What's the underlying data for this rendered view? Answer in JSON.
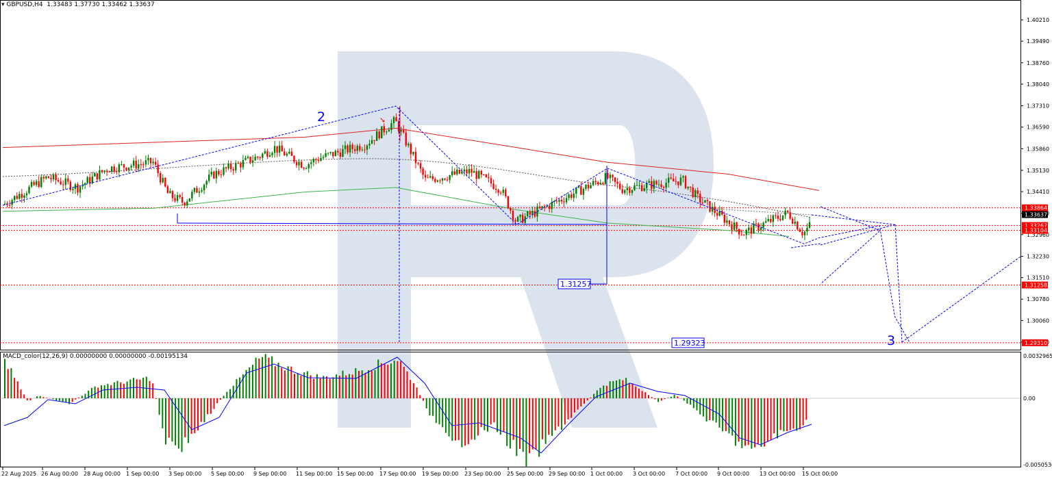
{
  "window": {
    "symbol_title": "GBPUSD,H4  1.33483 1.37730 1.33462 1.33637",
    "macd_title": "MACD_color(12,26,9) 0.00000000 0.00000000 -0.00195134"
  },
  "colors": {
    "bull": "#008000",
    "bear": "#ff0000",
    "wave": "#0000ff",
    "ma_red": "#e02020",
    "ma_green": "#3cb44b",
    "watermark": "#d6e0ec",
    "level_line": "#ff0000"
  },
  "price_axis": {
    "ticks": [
      "1.40210",
      "1.39490",
      "1.38760",
      "1.38040",
      "1.37310",
      "1.36590",
      "1.35860",
      "1.35130",
      "1.34410",
      "1.33680",
      "1.32960",
      "1.32230",
      "1.31510",
      "1.30780",
      "1.30060",
      "1.29330"
    ],
    "current_price": "1.33637"
  },
  "levels": [
    {
      "label": "1.33864",
      "value": 1.33864
    },
    {
      "label": "1.33267",
      "value": 1.33267
    },
    {
      "label": "1.33104",
      "value": 1.33104
    },
    {
      "label": "1.31258",
      "value": 1.31258
    },
    {
      "label": "1.29310",
      "value": 1.2931
    }
  ],
  "annotations": {
    "wave_2": "2",
    "wave_3": "3",
    "target_1": "1.31257",
    "target_2": "1.29323"
  },
  "macd_axis": {
    "top": "0.0032965",
    "zero": "0.00",
    "bottom": "-0.0050536"
  },
  "time_axis": [
    "22 Aug 2025",
    "26 Aug 00:00",
    "28 Aug 00:00",
    "1 Sep 00:00",
    "3 Sep 00:00",
    "5 Sep 00:00",
    "9 Sep 00:00",
    "11 Sep 00:00",
    "15 Sep 00:00",
    "17 Sep 00:00",
    "19 Sep 00:00",
    "23 Sep 00:00",
    "25 Sep 00:00",
    "29 Sep 00:00",
    "1 Oct 00:00",
    "3 Oct 00:00",
    "7 Oct 00:00",
    "9 Oct 00:00",
    "13 Oct 00:00",
    "15 Oct 00:00"
  ],
  "chart_data": {
    "type": "candlestick",
    "symbol": "GBPUSD",
    "timeframe": "H4",
    "ohlc_header": {
      "open": 1.33483,
      "high": 1.3773,
      "low": 1.33462,
      "close": 1.33637
    },
    "anchors": [
      {
        "date": "22 Aug",
        "price": 1.3395
      },
      {
        "date": "25 Aug",
        "price": 1.349
      },
      {
        "date": "27 Aug",
        "price": 1.3455
      },
      {
        "date": "29 Aug",
        "price": 1.352
      },
      {
        "date": "1 Sep",
        "price": 1.354
      },
      {
        "date": "2 Sep",
        "price": 1.343
      },
      {
        "date": "3 Sep",
        "price": 1.3405
      },
      {
        "date": "5 Sep",
        "price": 1.35
      },
      {
        "date": "8 Sep",
        "price": 1.356
      },
      {
        "date": "9 Sep",
        "price": 1.359
      },
      {
        "date": "11 Sep",
        "price": 1.353
      },
      {
        "date": "12 Sep",
        "price": 1.3555
      },
      {
        "date": "15 Sep",
        "price": 1.36
      },
      {
        "date": "17 Sep",
        "price": 1.368
      },
      {
        "date": "18 Sep",
        "price": 1.358
      },
      {
        "date": "19 Sep",
        "price": 1.348
      },
      {
        "date": "22 Sep",
        "price": 1.351
      },
      {
        "date": "24 Sep",
        "price": 1.345
      },
      {
        "date": "25 Sep",
        "price": 1.334
      },
      {
        "date": "29 Sep",
        "price": 1.344
      },
      {
        "date": "1 Oct",
        "price": 1.349
      },
      {
        "date": "2 Oct",
        "price": 1.345
      },
      {
        "date": "6 Oct",
        "price": 1.348
      },
      {
        "date": "7 Oct",
        "price": 1.342
      },
      {
        "date": "9 Oct",
        "price": 1.334
      },
      {
        "date": "10 Oct",
        "price": 1.33
      },
      {
        "date": "13 Oct",
        "price": 1.337
      },
      {
        "date": "14 Oct",
        "price": 1.33
      },
      {
        "date": "15 Oct",
        "price": 1.3364
      }
    ],
    "moving_averages": [
      {
        "color": "red",
        "points": [
          {
            "date": "22 Aug",
            "price": 1.359
          },
          {
            "date": "11 Sep",
            "price": 1.3625
          },
          {
            "date": "17 Sep",
            "price": 1.3655
          },
          {
            "date": "25 Sep",
            "price": 1.359
          },
          {
            "date": "1 Oct",
            "price": 1.354
          },
          {
            "date": "9 Oct",
            "price": 1.35
          },
          {
            "date": "15 Oct",
            "price": 1.3445
          }
        ]
      },
      {
        "color": "green",
        "points": [
          {
            "date": "22 Aug",
            "price": 1.3375
          },
          {
            "date": "1 Sep",
            "price": 1.3385
          },
          {
            "date": "11 Sep",
            "price": 1.344
          },
          {
            "date": "17 Sep",
            "price": 1.3455
          },
          {
            "date": "25 Sep",
            "price": 1.338
          },
          {
            "date": "1 Oct",
            "price": 1.3335
          },
          {
            "date": "9 Oct",
            "price": 1.331
          },
          {
            "date": "13 Oct",
            "price": 1.329
          }
        ]
      }
    ],
    "wave_projection": [
      {
        "date": "22 Aug",
        "price": 1.3395
      },
      {
        "date": "17 Sep",
        "price": 1.373,
        "label": "2"
      },
      {
        "date": "25 Sep",
        "price": 1.333
      },
      {
        "date": "1 Oct",
        "price": 1.352
      },
      {
        "date": "14 Oct",
        "price": 1.3265
      },
      {
        "date": "15 Oct",
        "price": 1.3285
      },
      {
        "date": "19 Oct",
        "price": 1.3326
      },
      {
        "date": "20 Oct",
        "price": 1.302
      },
      {
        "date": "21 Oct",
        "price": 1.2931,
        "label": "3"
      }
    ],
    "macd": {
      "params": "12,26,9",
      "values": [
        0.0,
        -0.0019512
      ],
      "ylim": [
        -0.0050536,
        0.0032965
      ]
    },
    "ylim": [
      1.2925,
      1.406
    ]
  }
}
